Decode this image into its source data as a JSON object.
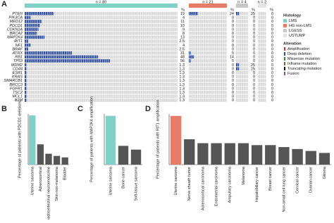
{
  "chart_data": [
    {
      "type": "oncoprint",
      "panel": "A",
      "percent_label": "%",
      "genes": [
        "PTEN",
        "PIK3CA",
        "MED12",
        "PDCD1",
        "CDKN2A",
        "BRCA2",
        "MAP2K4",
        "RIT1",
        "NF1",
        "BRAF",
        "ATRX",
        "RB1",
        "TP53",
        "MDM2",
        "CD44",
        "ESR1",
        "KRAS",
        "SMARCB1",
        "BRCC3",
        "FGFR1",
        "TSC2",
        "MCL1",
        "B2M"
      ],
      "alteration_color": "#2c4a9a",
      "groups": [
        {
          "label": "n = 80",
          "color": "#7fd1c6",
          "values": [
            19,
            4,
            11,
            10,
            9,
            8,
            13,
            2.5,
            4,
            2.5,
            31,
            48,
            56,
            1.3,
            1.3,
            1.3,
            1.3,
            1.3,
            1.3,
            1.3,
            1.3,
            1.3,
            1.3
          ]
        },
        {
          "label": "n = 21",
          "color": "#e97c66",
          "values": [
            24,
            0,
            0,
            0,
            0,
            0,
            0,
            0,
            0,
            0,
            5,
            14,
            5,
            0,
            0,
            0,
            0,
            0,
            0,
            0,
            0,
            0,
            0
          ]
        },
        {
          "label": "n = 4",
          "color": "#c8c8c8",
          "values": [
            25,
            0,
            0,
            0,
            0,
            0,
            0,
            0,
            0,
            0,
            0,
            0,
            0,
            25,
            25,
            0,
            0,
            0,
            0,
            0,
            0,
            0,
            0
          ]
        },
        {
          "label": "n = 2",
          "color": "#e4e4e4",
          "values": [
            0,
            0,
            0,
            0,
            0,
            0,
            0,
            0,
            0,
            0,
            0,
            0,
            0,
            0,
            0,
            0,
            0,
            0,
            0,
            0,
            0,
            0,
            0
          ]
        }
      ],
      "legend": {
        "histology_title": "Histology",
        "histology": [
          {
            "name": "LMS",
            "color": "#7fd1c6"
          },
          {
            "name": "HG non-LMS",
            "color": "#e97c66"
          },
          {
            "name": "LGESS",
            "color": "#c8c8c8"
          },
          {
            "name": "USTUMP",
            "color": "#e4e4e4"
          }
        ],
        "alteration_title": "Alteration",
        "alteration": [
          {
            "name": "Amplification",
            "color": "#d7302f"
          },
          {
            "name": "Deep deletion",
            "color": "#2c4a9a"
          },
          {
            "name": "Missense mutation",
            "color": "#2e8b3a"
          },
          {
            "name": "Inframe mutation",
            "color": "#8a5a2b"
          },
          {
            "name": "Truncating mutation",
            "color": "#111111"
          },
          {
            "name": "Fusion",
            "color": "#7b4fa0"
          }
        ]
      }
    },
    {
      "type": "bar",
      "panel": "B",
      "ylabel": "Percentage of patients with PDCD1 deletions",
      "categories": [
        "Uterine sarcoma",
        "Adrenocortical",
        "Gastrointestinal neuroendocrine",
        "Skin non-melanoma",
        "Bladder"
      ],
      "values": [
        6.8,
        2.8,
        1.5,
        1.2,
        1.0
      ],
      "colors": [
        "#7fd1c6",
        "#555555",
        "#555555",
        "#555555",
        "#555555"
      ],
      "ylim": [
        0,
        7
      ]
    },
    {
      "type": "bar",
      "panel": "C",
      "ylabel": "Percentage of patients with MAP2K4 amplification",
      "categories": [
        "Uterine sarcoma",
        "Bone cancer",
        "Soft-tissue sarcoma"
      ],
      "values": [
        13,
        5,
        4
      ],
      "colors": [
        "#7fd1c6",
        "#555555",
        "#555555"
      ],
      "ylim": [
        0,
        13.5
      ]
    },
    {
      "type": "bar",
      "panel": "D",
      "ylabel": "Percentage of patients with RIT1 amplification",
      "categories": [
        "Uterine sarcoma",
        "Nerve sheath tumor",
        "Adrenocortical carcinoma",
        "Endometrial carcinoma",
        "Ampullary carcinoma",
        "Melanoma",
        "Hepatobiliary cancer",
        "Breast cancer",
        "Non-small cell lung cancer",
        "Cervical cancer",
        "Ovarian cancer",
        "Glioma"
      ],
      "values": [
        2.5,
        1.3,
        1.1,
        1.1,
        1.1,
        1.1,
        1.0,
        1.0,
        0.9,
        0.8,
        0.7,
        0.6
      ],
      "colors": [
        "#e97c66",
        "#555555",
        "#555555",
        "#555555",
        "#555555",
        "#555555",
        "#555555",
        "#555555",
        "#555555",
        "#555555",
        "#555555",
        "#555555"
      ],
      "ylim": [
        0,
        2.6
      ]
    }
  ]
}
